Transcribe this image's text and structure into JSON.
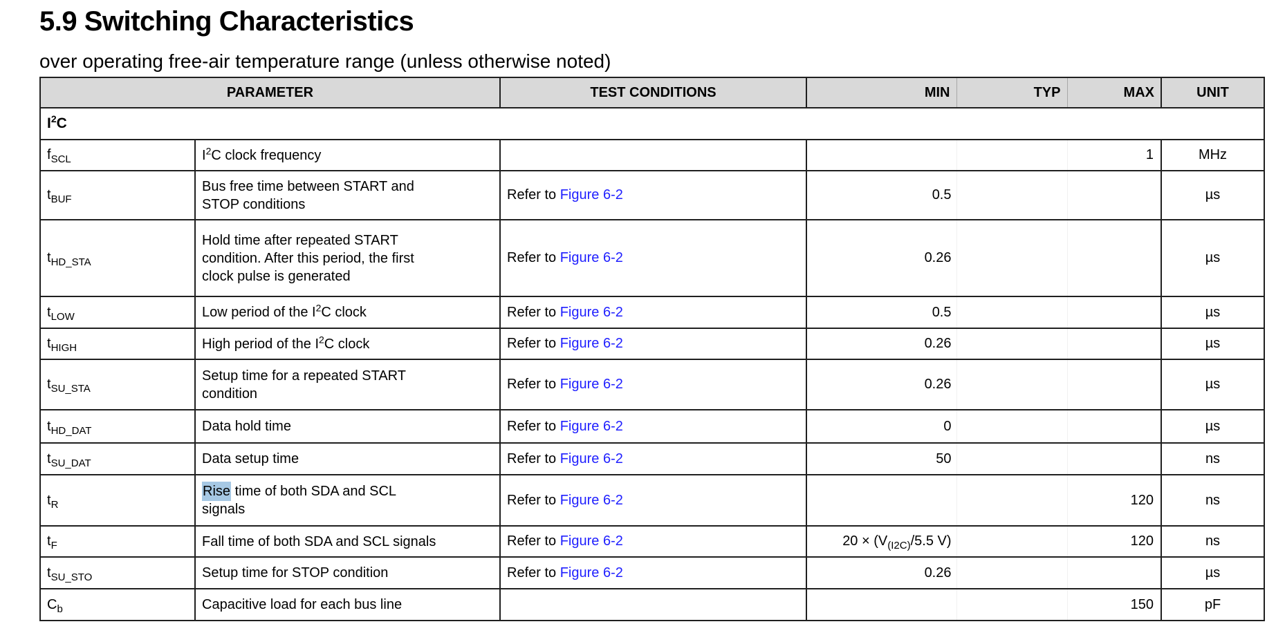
{
  "page": {
    "heading": "5.9 Switching Characteristics",
    "subtitle": "over operating free-air temperature range (unless otherwise noted)"
  },
  "colors": {
    "header_background": "#d9d9d9",
    "link_blue": "#1f1fff",
    "selection_highlight": "#a6c8e4",
    "table_border": "#1f1f1f"
  },
  "table": {
    "headers": {
      "parameter": "PARAMETER",
      "test_conditions": "TEST CONDITIONS",
      "min": "MIN",
      "typ": "TYP",
      "max": "MAX",
      "unit": "UNIT"
    },
    "section": {
      "label": [
        {
          "text": "I"
        },
        {
          "sup": "2"
        },
        {
          "text": "C"
        }
      ]
    },
    "rows": [
      {
        "symbol": {
          "base": "f",
          "sub": "SCL"
        },
        "description": [
          {
            "text": "I"
          },
          {
            "sup": "2"
          },
          {
            "text": "C clock frequency"
          }
        ],
        "condition": null,
        "min": null,
        "typ": null,
        "max": "1",
        "unit": "MHz"
      },
      {
        "symbol": {
          "base": "t",
          "sub": "BUF"
        },
        "description": [
          {
            "text": "Bus free time between START and"
          },
          {
            "br": true
          },
          {
            "text": "STOP conditions"
          }
        ],
        "condition": {
          "prefix": "Refer to ",
          "link": "Figure 6-2"
        },
        "min": "0.5",
        "typ": null,
        "max": null,
        "unit": "µs"
      },
      {
        "symbol": {
          "base": "t",
          "sub": "HD_STA"
        },
        "description": [
          {
            "text": "Hold time after repeated START"
          },
          {
            "br": true
          },
          {
            "text": "condition. After this period, the first"
          },
          {
            "br": true
          },
          {
            "text": "clock pulse is generated"
          }
        ],
        "condition": {
          "prefix": "Refer to ",
          "link": "Figure 6-2"
        },
        "min": "0.26",
        "typ": null,
        "max": null,
        "unit": "µs"
      },
      {
        "symbol": {
          "base": "t",
          "sub": "LOW"
        },
        "description": [
          {
            "text": "Low period of the I"
          },
          {
            "sup": "2"
          },
          {
            "text": "C clock"
          }
        ],
        "condition": {
          "prefix": "Refer to ",
          "link": "Figure 6-2"
        },
        "min": "0.5",
        "typ": null,
        "max": null,
        "unit": "µs"
      },
      {
        "symbol": {
          "base": "t",
          "sub": "HIGH"
        },
        "description": [
          {
            "text": "High period of the I"
          },
          {
            "sup": "2"
          },
          {
            "text": "C clock"
          }
        ],
        "condition": {
          "prefix": "Refer to ",
          "link": "Figure 6-2"
        },
        "min": "0.26",
        "typ": null,
        "max": null,
        "unit": "µs"
      },
      {
        "symbol": {
          "base": "t",
          "sub": "SU_STA"
        },
        "description": [
          {
            "text": "Setup time for a repeated START"
          },
          {
            "br": true
          },
          {
            "text": "condition"
          }
        ],
        "condition": {
          "prefix": "Refer to ",
          "link": "Figure 6-2"
        },
        "min": "0.26",
        "typ": null,
        "max": null,
        "unit": "µs"
      },
      {
        "symbol": {
          "base": "t",
          "sub": "HD_DAT"
        },
        "description": [
          {
            "text": "Data hold time"
          }
        ],
        "condition": {
          "prefix": "Refer to ",
          "link": "Figure 6-2"
        },
        "min": "0",
        "typ": null,
        "max": null,
        "unit": "µs"
      },
      {
        "symbol": {
          "base": "t",
          "sub": "SU_DAT"
        },
        "description": [
          {
            "text": "Data setup time"
          }
        ],
        "condition": {
          "prefix": "Refer to ",
          "link": "Figure 6-2"
        },
        "min": "50",
        "typ": null,
        "max": null,
        "unit": "ns"
      },
      {
        "symbol": {
          "base": "t",
          "sub": "R"
        },
        "description": [
          {
            "highlight": "Rise"
          },
          {
            "text": " time of both SDA and SCL"
          },
          {
            "br": true
          },
          {
            "text": "signals"
          }
        ],
        "condition": {
          "prefix": "Refer to ",
          "link": "Figure 6-2"
        },
        "min": null,
        "typ": null,
        "max": "120",
        "unit": "ns"
      },
      {
        "symbol": {
          "base": "t",
          "sub": "F"
        },
        "description": [
          {
            "text": "Fall time of both SDA and SCL signals"
          }
        ],
        "condition": {
          "prefix": "Refer to ",
          "link": "Figure 6-2"
        },
        "min": [
          {
            "text": "20 × (V"
          },
          {
            "sub": "(I2C)"
          },
          {
            "text": "/5.5 V)"
          }
        ],
        "typ": null,
        "max": "120",
        "unit": "ns"
      },
      {
        "symbol": {
          "base": "t",
          "sub": "SU_STO"
        },
        "description": [
          {
            "text": "Setup time for STOP condition"
          }
        ],
        "condition": {
          "prefix": "Refer to ",
          "link": "Figure 6-2"
        },
        "min": "0.26",
        "typ": null,
        "max": null,
        "unit": "µs"
      },
      {
        "symbol": {
          "base": "C",
          "sub": "b"
        },
        "description": [
          {
            "text": "Capacitive load for each bus line"
          }
        ],
        "condition": null,
        "min": null,
        "typ": null,
        "max": "150",
        "unit": "pF"
      }
    ]
  }
}
